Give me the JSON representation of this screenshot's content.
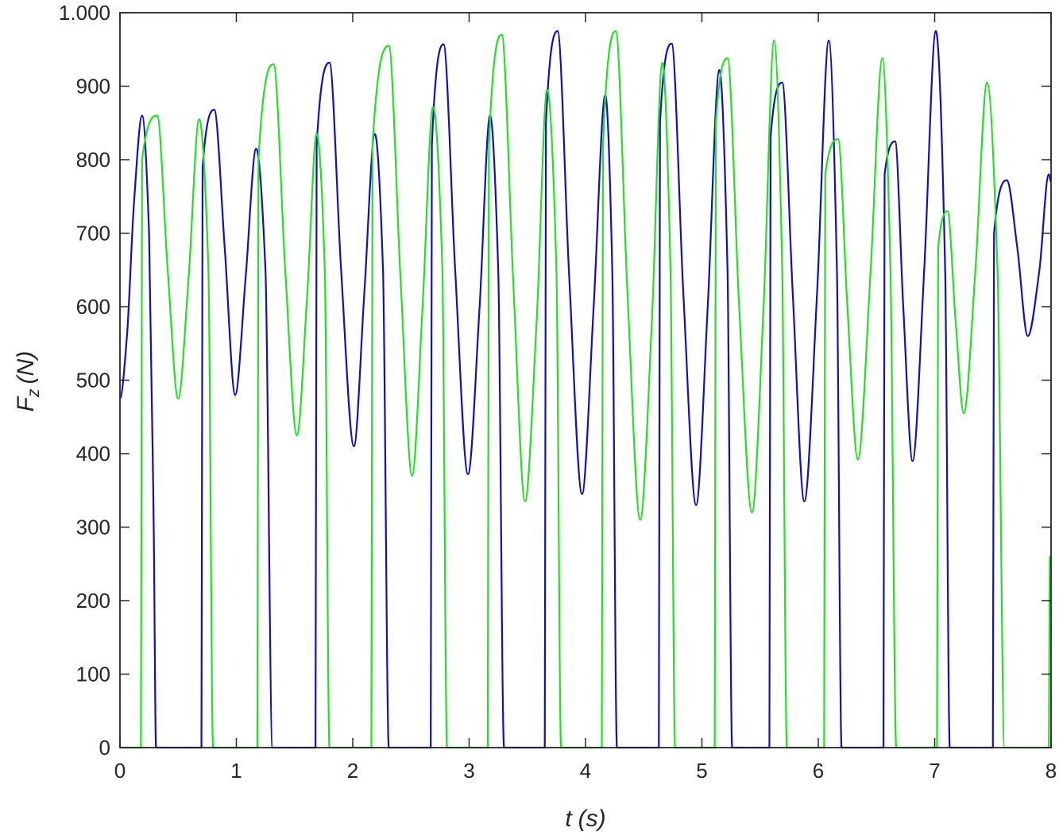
{
  "chart_data": {
    "type": "line",
    "x_label": {
      "symbol": "t",
      "unit": "(s)"
    },
    "y_label": {
      "symbol": "F",
      "subscript": "z",
      "unit": "(N)"
    },
    "xlim": [
      0,
      8
    ],
    "ylim": [
      0,
      1000
    ],
    "xticks": [
      0,
      1,
      2,
      3,
      4,
      5,
      6,
      7,
      8
    ],
    "yticks": [
      0,
      100,
      200,
      300,
      400,
      500,
      600,
      700,
      800,
      900,
      {
        "value": 1000,
        "label": "1.000"
      }
    ],
    "grid": false,
    "series": [
      {
        "color": "#1010c0",
        "x": [
          0,
          0.06,
          0.12,
          0.19,
          0.25,
          0.29,
          0.31,
          0.7,
          0.71,
          0.81,
          0.9,
          0.99,
          1.08,
          1.17,
          1.25,
          1.31,
          1.68,
          1.69,
          1.8,
          1.9,
          2.01,
          2.1,
          2.19,
          2.26,
          2.31,
          2.67,
          2.68,
          2.78,
          2.88,
          2.99,
          3.09,
          3.18,
          3.25,
          3.3,
          3.65,
          3.66,
          3.76,
          3.86,
          3.97,
          4.07,
          4.17,
          4.23,
          4.27,
          4.63,
          4.64,
          4.74,
          4.84,
          4.95,
          5.05,
          5.15,
          5.22,
          5.26,
          5.58,
          5.59,
          5.69,
          5.78,
          5.88,
          5.99,
          6.09,
          6.16,
          6.2,
          6.56,
          6.57,
          6.66,
          6.73,
          6.81,
          6.91,
          7.01,
          7.09,
          7.13,
          7.5,
          7.51,
          7.62,
          7.71,
          7.8,
          7.9,
          7.98,
          8.0
        ],
        "values": [
          475,
          560,
          740,
          860,
          700,
          300,
          0,
          0,
          790,
          868,
          680,
          480,
          640,
          815,
          650,
          0,
          0,
          820,
          932,
          650,
          410,
          620,
          835,
          650,
          0,
          0,
          820,
          957,
          650,
          372,
          600,
          860,
          650,
          0,
          0,
          850,
          975,
          640,
          345,
          600,
          888,
          650,
          0,
          0,
          850,
          958,
          620,
          330,
          600,
          922,
          650,
          0,
          0,
          830,
          905,
          620,
          335,
          620,
          962,
          650,
          0,
          0,
          780,
          825,
          600,
          390,
          650,
          975,
          650,
          0,
          0,
          700,
          772,
          680,
          560,
          650,
          780,
          770
        ]
      },
      {
        "color": "#22e022",
        "x": [
          0,
          0.18,
          0.19,
          0.32,
          0.41,
          0.5,
          0.59,
          0.68,
          0.76,
          0.8,
          1.18,
          1.19,
          1.32,
          1.42,
          1.52,
          1.61,
          1.69,
          1.76,
          1.8,
          2.16,
          2.17,
          2.31,
          2.41,
          2.51,
          2.6,
          2.69,
          2.77,
          2.81,
          3.16,
          3.17,
          3.28,
          3.38,
          3.48,
          3.58,
          3.67,
          3.75,
          3.79,
          4.14,
          4.15,
          4.26,
          4.36,
          4.47,
          4.57,
          4.66,
          4.73,
          4.77,
          5.11,
          5.12,
          5.22,
          5.32,
          5.43,
          5.53,
          5.62,
          5.69,
          5.73,
          6.05,
          6.06,
          6.17,
          6.25,
          6.34,
          6.45,
          6.55,
          6.62,
          6.67,
          7.02,
          7.03,
          7.11,
          7.18,
          7.25,
          7.35,
          7.45,
          7.54,
          7.6,
          7.98,
          7.99,
          8.0
        ],
        "values": [
          0,
          0,
          800,
          860,
          650,
          475,
          640,
          855,
          650,
          0,
          0,
          800,
          930,
          650,
          425,
          620,
          835,
          650,
          0,
          0,
          820,
          955,
          640,
          370,
          600,
          872,
          650,
          0,
          0,
          820,
          970,
          630,
          335,
          580,
          895,
          650,
          0,
          0,
          820,
          975,
          620,
          310,
          580,
          932,
          650,
          0,
          0,
          850,
          938,
          600,
          320,
          600,
          962,
          650,
          0,
          0,
          780,
          828,
          600,
          392,
          650,
          938,
          650,
          0,
          0,
          680,
          730,
          580,
          455,
          650,
          905,
          650,
          0,
          0,
          260,
          260
        ]
      }
    ]
  }
}
